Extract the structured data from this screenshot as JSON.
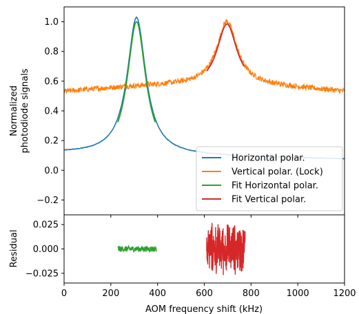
{
  "chart_data": [
    {
      "type": "line",
      "panel": "main",
      "xlim": [
        0,
        1200
      ],
      "ylim": [
        -0.3,
        1.1
      ],
      "xlabel": "",
      "ylabel": "Normalized\nphotodiode signals",
      "yticks": [
        -0.2,
        0.0,
        0.2,
        0.4,
        0.6,
        0.8,
        1.0
      ],
      "ytick_labels": [
        "−0.2",
        "0.0",
        "0.2",
        "0.4",
        "0.6",
        "0.8",
        "1.0"
      ],
      "xticks": [
        0,
        200,
        400,
        600,
        800,
        1000,
        1200
      ],
      "grid": false,
      "legend_position": "lower-right",
      "series": [
        {
          "name": "Horizontal polar.",
          "color": "#1f77b4",
          "x": [
            0,
            50,
            100,
            150,
            200,
            230,
            250,
            270,
            290,
            300,
            310,
            320,
            330,
            350,
            370,
            390,
            420,
            450,
            500,
            600,
            700,
            800,
            900,
            1000,
            1100,
            1200
          ],
          "y": [
            0.11,
            0.12,
            0.14,
            0.17,
            0.23,
            0.31,
            0.43,
            0.64,
            0.89,
            0.97,
            1.0,
            0.97,
            0.89,
            0.64,
            0.43,
            0.31,
            0.2,
            0.15,
            0.11,
            0.09,
            0.08,
            0.08,
            0.08,
            0.07,
            0.07,
            0.07
          ]
        },
        {
          "name": "Vertical polar. (Lock)",
          "color": "#ff7f0e",
          "x": [
            0,
            100,
            200,
            300,
            400,
            500,
            550,
            600,
            630,
            660,
            680,
            695,
            710,
            740,
            780,
            820,
            850,
            900,
            1000,
            1100,
            1200
          ],
          "y": [
            0.53,
            0.54,
            0.55,
            0.56,
            0.57,
            0.6,
            0.63,
            0.69,
            0.77,
            0.88,
            0.96,
            0.99,
            0.97,
            0.86,
            0.72,
            0.65,
            0.61,
            0.58,
            0.56,
            0.55,
            0.54
          ]
        },
        {
          "name": "Fit Horizontal polar.",
          "color": "#2ca02c",
          "x": [
            230,
            250,
            270,
            290,
            300,
            310,
            320,
            330,
            350,
            370,
            390
          ],
          "y": [
            0.31,
            0.43,
            0.64,
            0.89,
            0.97,
            1.0,
            0.97,
            0.89,
            0.64,
            0.43,
            0.31
          ]
        },
        {
          "name": "Fit Vertical polar.",
          "color": "#d62728",
          "x": [
            610,
            630,
            660,
            680,
            695,
            710,
            740,
            770
          ],
          "y": [
            0.71,
            0.77,
            0.88,
            0.96,
            0.99,
            0.97,
            0.86,
            0.76
          ]
        }
      ]
    },
    {
      "type": "line",
      "panel": "residual",
      "xlim": [
        0,
        1200
      ],
      "ylim": [
        -0.035,
        0.035
      ],
      "xlabel": "AOM frequency shift (kHz)",
      "ylabel": "Residual",
      "yticks": [
        -0.025,
        0.0,
        0.025
      ],
      "ytick_labels": [
        "−0.025",
        "0.000",
        "0.025"
      ],
      "xticks": [
        0,
        200,
        400,
        600,
        800,
        1000,
        1200
      ],
      "xtick_labels": [
        "0",
        "200",
        "400",
        "600",
        "800",
        "1000",
        "1200"
      ],
      "grid": false,
      "series": [
        {
          "color": "#2ca02c",
          "x": [
            230,
            395
          ],
          "y_amplitude": 0.003,
          "y_center": 0.0
        },
        {
          "color": "#d62728",
          "x": [
            610,
            775
          ],
          "y_amplitude": 0.03,
          "y_center": 0.0
        }
      ]
    }
  ],
  "legend": {
    "entries": [
      {
        "label": "Horizontal polar.",
        "color": "#1f77b4"
      },
      {
        "label": "Vertical polar. (Lock)",
        "color": "#ff7f0e"
      },
      {
        "label": "Fit Horizontal polar.",
        "color": "#2ca02c"
      },
      {
        "label": "Fit Vertical polar.",
        "color": "#d62728"
      }
    ]
  }
}
